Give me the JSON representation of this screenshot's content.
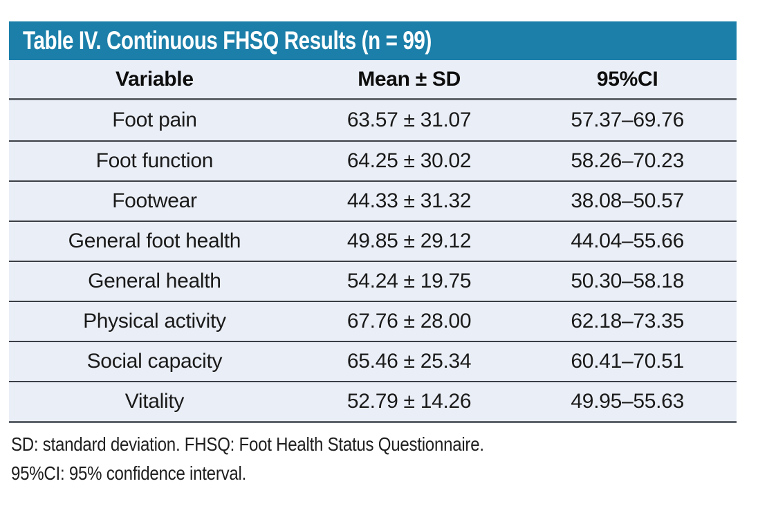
{
  "table": {
    "title": "Table IV. Continuous FHSQ Results (n = 99)",
    "columns": {
      "variable": "Variable",
      "mean_sd": "Mean ± SD",
      "ci_95": "95%CI"
    },
    "rows": [
      {
        "variable": "Foot pain",
        "mean_sd": "63.57 ± 31.07",
        "ci_95": "57.37–69.76"
      },
      {
        "variable": "Foot function",
        "mean_sd": "64.25 ± 30.02",
        "ci_95": "58.26–70.23"
      },
      {
        "variable": "Footwear",
        "mean_sd": "44.33 ± 31.32",
        "ci_95": "38.08–50.57"
      },
      {
        "variable": "General foot health",
        "mean_sd": "49.85 ± 29.12",
        "ci_95": "44.04–55.66"
      },
      {
        "variable": "General health",
        "mean_sd": "54.24 ± 19.75",
        "ci_95": "50.30–58.18"
      },
      {
        "variable": "Physical activity",
        "mean_sd": "67.76 ± 28.00",
        "ci_95": "62.18–73.35"
      },
      {
        "variable": "Social capacity",
        "mean_sd": "65.46 ± 25.34",
        "ci_95": "60.41–70.51"
      },
      {
        "variable": "Vitality",
        "mean_sd": "52.79 ± 14.26",
        "ci_95": "49.95–55.63"
      }
    ],
    "footnotes": [
      "SD: standard deviation. FHSQ: Foot Health Status Questionnaire.",
      "95%CI: 95% confidence interval."
    ],
    "sample_size": 99,
    "colors": {
      "title_bar": "#1b7fa9",
      "title_text": "#ffffff",
      "row_background": "#eaeef6",
      "heavy_rule": "#5f646b",
      "row_rule": "#3b3f45",
      "body_text": "#1a1a1a"
    }
  },
  "chart_data": {
    "type": "table",
    "title": "Table IV. Continuous FHSQ Results (n = 99)",
    "columns": [
      "Variable",
      "Mean ± SD",
      "95%CI"
    ],
    "categories": [
      "Foot pain",
      "Foot function",
      "Footwear",
      "General foot health",
      "General health",
      "Physical activity",
      "Social capacity",
      "Vitality"
    ],
    "series": [
      {
        "name": "Mean",
        "values": [
          63.57,
          64.25,
          44.33,
          49.85,
          54.24,
          67.76,
          65.46,
          52.79
        ]
      },
      {
        "name": "SD",
        "values": [
          31.07,
          30.02,
          31.32,
          29.12,
          19.75,
          28.0,
          25.34,
          14.26
        ]
      },
      {
        "name": "CI lower",
        "values": [
          57.37,
          58.26,
          38.08,
          44.04,
          50.3,
          62.18,
          60.41,
          49.95
        ]
      },
      {
        "name": "CI upper",
        "values": [
          69.76,
          70.23,
          50.57,
          55.66,
          58.18,
          73.35,
          70.51,
          55.63
        ]
      }
    ]
  }
}
